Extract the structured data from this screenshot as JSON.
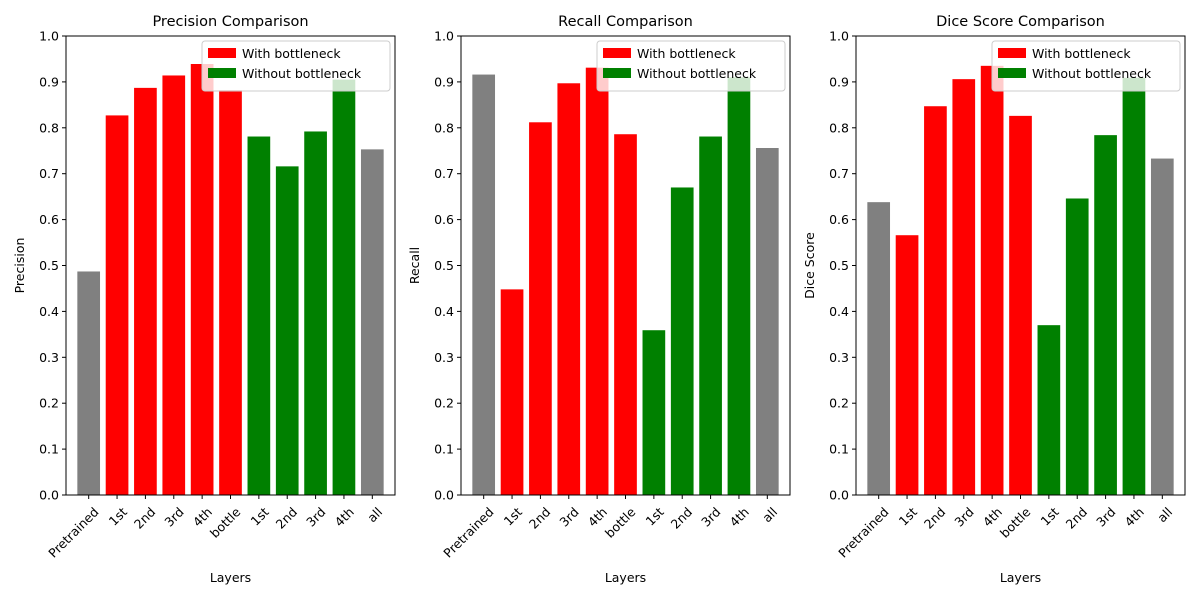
{
  "colors": {
    "gray": "#808080",
    "red": "#ff0000",
    "green": "#008000"
  },
  "chart_data": [
    {
      "type": "bar",
      "title": "Precision Comparison",
      "xlabel": "Layers",
      "ylabel": "Precision",
      "ylim": [
        0,
        1.0
      ],
      "yticks": [
        "0.0",
        "0.1",
        "0.2",
        "0.3",
        "0.4",
        "0.5",
        "0.6",
        "0.7",
        "0.8",
        "0.9",
        "1.0"
      ],
      "categories": [
        "Pretrained",
        "1st",
        "2nd",
        "3rd",
        "4th",
        "bottle",
        "1st",
        "2nd",
        "3rd",
        "4th",
        "all"
      ],
      "values": [
        0.487,
        0.827,
        0.887,
        0.914,
        0.939,
        0.882,
        0.781,
        0.716,
        0.792,
        0.905,
        0.753
      ],
      "bar_colors": [
        "gray",
        "red",
        "red",
        "red",
        "red",
        "red",
        "green",
        "green",
        "green",
        "green",
        "gray"
      ],
      "legend": {
        "placement": "top-right",
        "entries": [
          {
            "label": "With bottleneck",
            "color": "red"
          },
          {
            "label": "Without bottleneck",
            "color": "green"
          }
        ]
      },
      "grid": false
    },
    {
      "type": "bar",
      "title": "Recall Comparison",
      "xlabel": "Layers",
      "ylabel": "Recall",
      "ylim": [
        0,
        1.0
      ],
      "yticks": [
        "0.0",
        "0.1",
        "0.2",
        "0.3",
        "0.4",
        "0.5",
        "0.6",
        "0.7",
        "0.8",
        "0.9",
        "1.0"
      ],
      "categories": [
        "Pretrained",
        "1st",
        "2nd",
        "3rd",
        "4th",
        "bottle",
        "1st",
        "2nd",
        "3rd",
        "4th",
        "all"
      ],
      "values": [
        0.916,
        0.448,
        0.812,
        0.897,
        0.931,
        0.786,
        0.359,
        0.67,
        0.781,
        0.91,
        0.756
      ],
      "bar_colors": [
        "gray",
        "red",
        "red",
        "red",
        "red",
        "red",
        "green",
        "green",
        "green",
        "green",
        "gray"
      ],
      "legend": {
        "placement": "top-right",
        "entries": [
          {
            "label": "With bottleneck",
            "color": "red"
          },
          {
            "label": "Without bottleneck",
            "color": "green"
          }
        ]
      },
      "grid": false
    },
    {
      "type": "bar",
      "title": "Dice Score Comparison",
      "xlabel": "Layers",
      "ylabel": "Dice Score",
      "ylim": [
        0,
        1.0
      ],
      "yticks": [
        "0.0",
        "0.1",
        "0.2",
        "0.3",
        "0.4",
        "0.5",
        "0.6",
        "0.7",
        "0.8",
        "0.9",
        "1.0"
      ],
      "categories": [
        "Pretrained",
        "1st",
        "2nd",
        "3rd",
        "4th",
        "bottle",
        "1st",
        "2nd",
        "3rd",
        "4th",
        "all"
      ],
      "values": [
        0.638,
        0.566,
        0.847,
        0.906,
        0.935,
        0.826,
        0.37,
        0.646,
        0.784,
        0.909,
        0.733
      ],
      "bar_colors": [
        "gray",
        "red",
        "red",
        "red",
        "red",
        "red",
        "green",
        "green",
        "green",
        "green",
        "gray"
      ],
      "legend": {
        "placement": "top-right",
        "entries": [
          {
            "label": "With bottleneck",
            "color": "red"
          },
          {
            "label": "Without bottleneck",
            "color": "green"
          }
        ]
      },
      "grid": false
    }
  ]
}
